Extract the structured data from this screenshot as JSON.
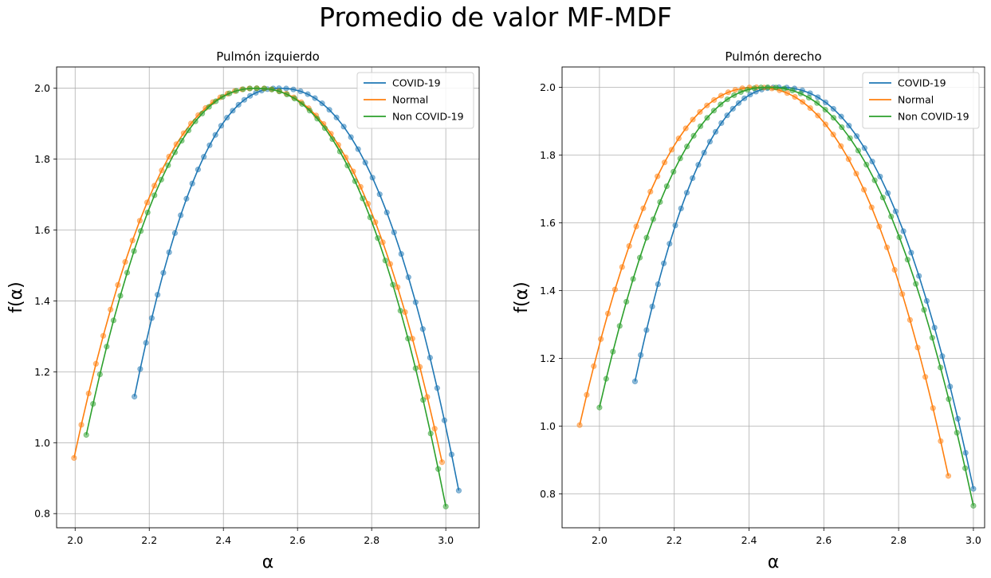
{
  "figure": {
    "title": "Promedio de valor MF-MDF"
  },
  "chart_data": [
    {
      "type": "line",
      "title": "Pulmón izquierdo",
      "xlabel": "α",
      "ylabel": "f(α)",
      "xlim": [
        1.95,
        3.09
      ],
      "ylim": [
        0.76,
        2.06
      ],
      "xticks": [
        2.0,
        2.2,
        2.4,
        2.6,
        2.8,
        3.0
      ],
      "yticks": [
        0.8,
        1.0,
        1.2,
        1.4,
        1.6,
        1.8,
        2.0
      ],
      "xtick_labels": [
        "2.0",
        "2.2",
        "2.4",
        "2.6",
        "2.8",
        "3.0"
      ],
      "ytick_labels": [
        "0.8",
        "1.0",
        "1.2",
        "1.4",
        "1.6",
        "1.8",
        "2.0"
      ],
      "grid": true,
      "legend": "upper right",
      "legend_entries": [
        "COVID-19",
        "Normal",
        "Non COVID-19"
      ],
      "series": [
        {
          "name": "COVID-19",
          "color": "#1f77b4",
          "alpha_min": 2.16,
          "f_min_left": 1.13,
          "alpha_peak": 2.55,
          "alpha_max": 3.035,
          "f_min_right": 0.865
        },
        {
          "name": "Normal",
          "color": "#ff7f0e",
          "alpha_min": 1.997,
          "f_min_left": 0.957,
          "alpha_peak": 2.49,
          "alpha_max": 2.99,
          "f_min_right": 0.945
        },
        {
          "name": "Non COVID-19",
          "color": "#2ca02c",
          "alpha_min": 2.03,
          "f_min_left": 1.022,
          "alpha_peak": 2.49,
          "alpha_max": 3.0,
          "f_min_right": 0.82
        }
      ]
    },
    {
      "type": "line",
      "title": "Pulmón derecho",
      "xlabel": "α",
      "ylabel": "f(α)",
      "xlim": [
        1.9,
        3.03
      ],
      "ylim": [
        0.7,
        2.06
      ],
      "xticks": [
        2.0,
        2.2,
        2.4,
        2.6,
        2.8,
        3.0
      ],
      "yticks": [
        0.8,
        1.0,
        1.2,
        1.4,
        1.6,
        1.8,
        2.0
      ],
      "xtick_labels": [
        "2.0",
        "2.2",
        "2.4",
        "2.6",
        "2.8",
        "3.0"
      ],
      "ytick_labels": [
        "0.8",
        "1.0",
        "1.2",
        "1.4",
        "1.6",
        "1.8",
        "2.0"
      ],
      "grid": true,
      "legend": "upper right",
      "legend_entries": [
        "COVID-19",
        "Normal",
        "Non COVID-19"
      ],
      "series": [
        {
          "name": "COVID-19",
          "color": "#1f77b4",
          "alpha_min": 2.095,
          "f_min_left": 1.132,
          "alpha_peak": 2.48,
          "alpha_max": 3.0,
          "f_min_right": 0.815
        },
        {
          "name": "Normal",
          "color": "#ff7f0e",
          "alpha_min": 1.947,
          "f_min_left": 1.003,
          "alpha_peak": 2.42,
          "alpha_max": 2.933,
          "f_min_right": 0.853
        },
        {
          "name": "Non COVID-19",
          "color": "#2ca02c",
          "alpha_min": 2.0,
          "f_min_left": 1.055,
          "alpha_peak": 2.45,
          "alpha_max": 3.0,
          "f_min_right": 0.765
        }
      ]
    }
  ]
}
